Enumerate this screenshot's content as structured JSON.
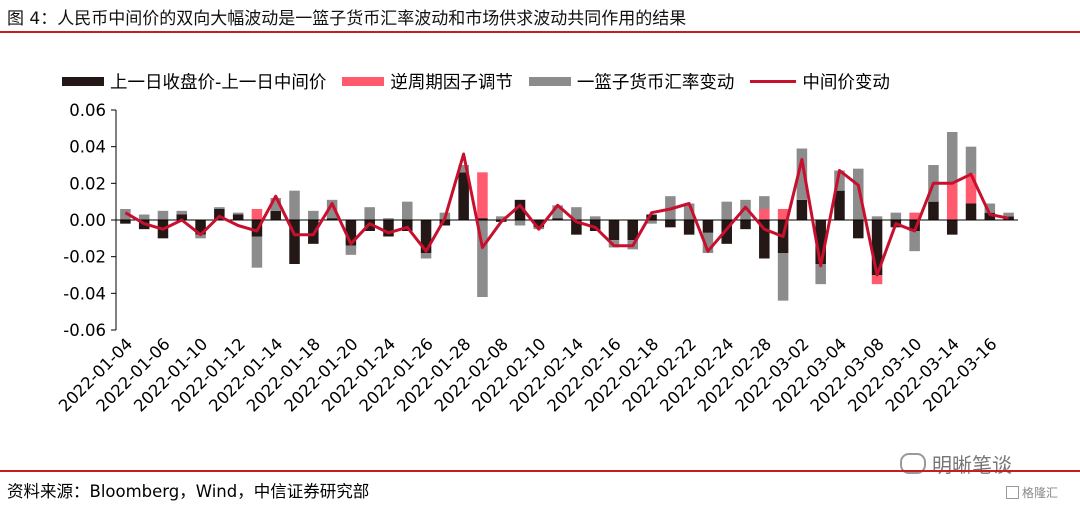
{
  "figure_title": "图 4：人民币中间价的双向大幅波动是一篮子货币汇率波动和市场供求波动共同作用的结果",
  "source": "资料来源：Bloomberg，Wind，中信证券研究部",
  "watermark": "明晰笔谈",
  "watermark2": "格隆汇",
  "colors": {
    "rule": "#c41e1e",
    "series_black": "#231815",
    "series_pink": "#ff5a6e",
    "series_gray": "#8c8c8c",
    "series_line": "#c8102e"
  },
  "chart_data": {
    "type": "bar",
    "title": "",
    "xlabel": "",
    "ylabel": "",
    "ylim": [
      -0.06,
      0.06
    ],
    "yticks": [
      "0.06",
      "0.04",
      "0.02",
      "0.00",
      "-0.02",
      "-0.04",
      "-0.06"
    ],
    "ytick_values": [
      0.06,
      0.04,
      0.02,
      0.0,
      -0.02,
      -0.04,
      -0.06
    ],
    "legend_position": "top",
    "grid": false,
    "categories": [
      "2022-01-04",
      "2022-01-05",
      "2022-01-06",
      "2022-01-07",
      "2022-01-10",
      "2022-01-11",
      "2022-01-12",
      "2022-01-13",
      "2022-01-14",
      "2022-01-17",
      "2022-01-18",
      "2022-01-19",
      "2022-01-20",
      "2022-01-21",
      "2022-01-24",
      "2022-01-25",
      "2022-01-26",
      "2022-01-27",
      "2022-01-28",
      "2022-02-07",
      "2022-02-08",
      "2022-02-09",
      "2022-02-10",
      "2022-02-11",
      "2022-02-14",
      "2022-02-15",
      "2022-02-16",
      "2022-02-17",
      "2022-02-18",
      "2022-02-21",
      "2022-02-22",
      "2022-02-23",
      "2022-02-24",
      "2022-02-25",
      "2022-02-28",
      "2022-03-01",
      "2022-03-02",
      "2022-03-03",
      "2022-03-04",
      "2022-03-07",
      "2022-03-08",
      "2022-03-09",
      "2022-03-10",
      "2022-03-11",
      "2022-03-14",
      "2022-03-15",
      "2022-03-16",
      "2022-03-17"
    ],
    "x_tick_labels": [
      "2022-01-04",
      "2022-01-06",
      "2022-01-10",
      "2022-01-12",
      "2022-01-14",
      "2022-01-18",
      "2022-01-20",
      "2022-01-24",
      "2022-01-26",
      "2022-01-28",
      "2022-02-08",
      "2022-02-10",
      "2022-02-14",
      "2022-02-16",
      "2022-02-18",
      "2022-02-22",
      "2022-02-24",
      "2022-02-28",
      "2022-03-02",
      "2022-03-04",
      "2022-03-08",
      "2022-03-10",
      "2022-03-14",
      "2022-03-16"
    ],
    "series": [
      {
        "name": "上一日收盘价-上一日中间价",
        "kind": "bar",
        "values": [
          -0.002,
          -0.005,
          -0.01,
          0.003,
          -0.008,
          0.006,
          0.003,
          -0.009,
          0.005,
          -0.024,
          -0.013,
          0.001,
          -0.014,
          -0.006,
          -0.009,
          -0.006,
          -0.018,
          -0.003,
          0.026,
          0.001,
          -0.001,
          0.011,
          -0.004,
          0.001,
          -0.008,
          -0.006,
          -0.011,
          -0.011,
          0.003,
          -0.004,
          -0.008,
          -0.007,
          -0.013,
          -0.005,
          -0.021,
          -0.018,
          0.011,
          -0.024,
          0.016,
          -0.01,
          -0.03,
          -0.004,
          -0.006,
          0.01,
          -0.008,
          0.009,
          0.004,
          0.002
        ]
      },
      {
        "name": "逆周期因子调节",
        "kind": "bar",
        "values": [
          0.0,
          0.0,
          0.0,
          0.0,
          0.0,
          0.0,
          0.0,
          0.006,
          0.0,
          0.0,
          0.0,
          0.0,
          0.0,
          0.0,
          0.0,
          0.0,
          0.0,
          0.0,
          0.0,
          0.025,
          0.0,
          0.0,
          0.0,
          0.0,
          0.0,
          0.0,
          0.0,
          0.0,
          0.0,
          0.0,
          0.0,
          0.0,
          0.0,
          0.0,
          0.006,
          0.006,
          0.0,
          0.0,
          0.0,
          0.0,
          -0.005,
          0.0,
          0.004,
          0.0,
          0.02,
          0.016,
          0.0,
          0.0
        ]
      },
      {
        "name": "一篮子货币汇率变动",
        "kind": "bar",
        "values": [
          0.006,
          0.003,
          0.005,
          0.002,
          -0.002,
          0.001,
          0.001,
          -0.017,
          0.007,
          0.016,
          0.005,
          0.01,
          -0.005,
          0.007,
          0.001,
          0.01,
          -0.003,
          0.004,
          0.004,
          -0.042,
          0.002,
          -0.003,
          -0.001,
          0.007,
          0.007,
          0.002,
          -0.004,
          -0.005,
          -0.002,
          0.013,
          0.009,
          -0.011,
          0.01,
          0.011,
          0.007,
          -0.026,
          0.028,
          -0.011,
          0.011,
          0.028,
          0.002,
          0.004,
          -0.011,
          0.02,
          0.028,
          0.015,
          0.005,
          0.002
        ]
      },
      {
        "name": "中间价变动",
        "kind": "line",
        "values": [
          0.004,
          -0.002,
          -0.005,
          0.0,
          -0.008,
          0.002,
          -0.003,
          -0.006,
          0.013,
          -0.008,
          -0.008,
          0.009,
          -0.013,
          -0.002,
          -0.007,
          -0.004,
          -0.017,
          0.001,
          0.036,
          -0.015,
          -0.001,
          0.008,
          -0.005,
          0.008,
          -0.001,
          -0.004,
          -0.014,
          -0.014,
          0.004,
          0.006,
          0.009,
          -0.017,
          -0.005,
          0.007,
          -0.005,
          -0.009,
          0.033,
          -0.025,
          0.027,
          0.019,
          -0.03,
          -0.002,
          -0.006,
          0.02,
          0.02,
          0.025,
          0.003,
          0.001
        ]
      }
    ]
  }
}
